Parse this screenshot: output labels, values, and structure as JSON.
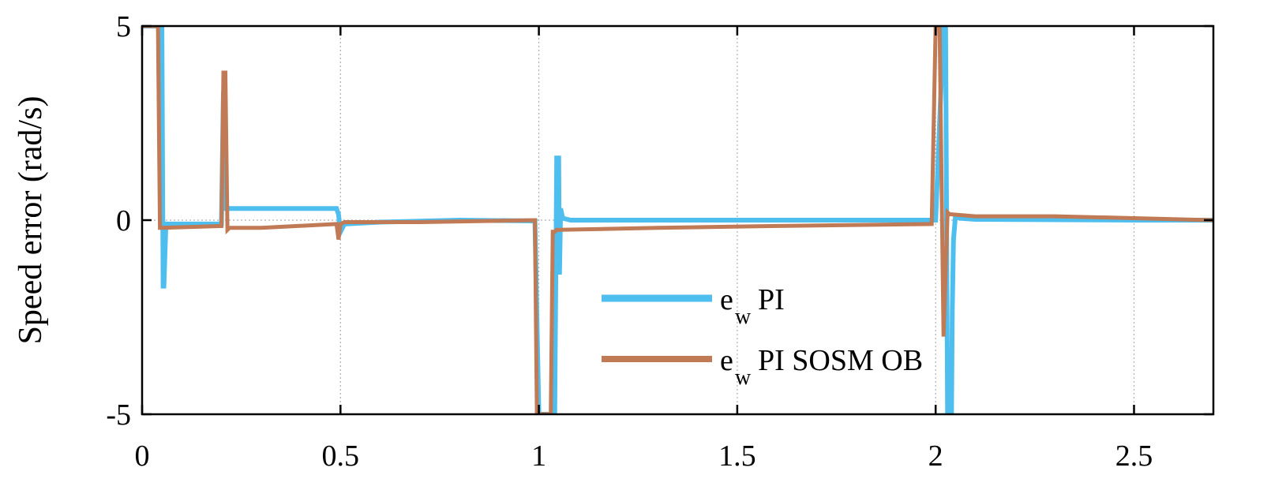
{
  "chart_data": {
    "type": "line",
    "title": "",
    "xlabel": "",
    "ylabel": "Speed error (rad/s)",
    "xlim": [
      0,
      2.7
    ],
    "ylim": [
      -5,
      5
    ],
    "grid": true,
    "legend_position": "bottom-center",
    "x_ticks": [
      {
        "value": 0,
        "label": "0"
      },
      {
        "value": 0.5,
        "label": "0.5"
      },
      {
        "value": 1,
        "label": "1"
      },
      {
        "value": 1.5,
        "label": "1.5"
      },
      {
        "value": 2,
        "label": "2"
      },
      {
        "value": 2.5,
        "label": "2.5"
      }
    ],
    "y_ticks": [
      {
        "value": 5,
        "label": "5"
      },
      {
        "value": 0,
        "label": "0"
      },
      {
        "value": -5,
        "label": "-5"
      }
    ],
    "series": [
      {
        "name": "PI",
        "legend_main": "e",
        "legend_sub": "w",
        "color": "#4dbeee",
        "x": [
          0.0,
          0.04,
          0.045,
          0.05,
          0.053,
          0.055,
          0.06,
          0.2,
          0.205,
          0.21,
          0.25,
          0.3,
          0.49,
          0.495,
          0.5,
          0.51,
          0.6,
          0.8,
          0.99,
          1.0,
          1.04,
          1.045,
          1.05,
          1.052,
          1.055,
          1.06,
          1.08,
          1.3,
          1.6,
          1.9,
          2.0,
          2.02,
          2.025,
          2.03,
          2.04,
          2.042,
          2.045,
          2.05,
          2.06,
          2.1,
          2.5,
          2.7
        ],
        "y": [
          5,
          5,
          5,
          5,
          -1.7,
          -1.7,
          -0.1,
          -0.1,
          3.3,
          0.3,
          0.3,
          0.3,
          0.3,
          0.15,
          -0.3,
          -0.1,
          -0.05,
          0.0,
          -0.02,
          -5,
          -5,
          1.6,
          1.6,
          -1.4,
          0.3,
          0.05,
          0.0,
          0.0,
          0.0,
          0.0,
          0.0,
          5,
          5,
          -5,
          -5,
          -2.3,
          -0.5,
          0.1,
          0.05,
          0.02,
          0.0,
          0.0
        ]
      },
      {
        "name": "PI SOSM OB",
        "legend_main": "e",
        "legend_sub": "w",
        "color": "#c07a55",
        "x": [
          0.0,
          0.035,
          0.04,
          0.045,
          0.05,
          0.2,
          0.205,
          0.21,
          0.215,
          0.22,
          0.3,
          0.49,
          0.495,
          0.5,
          0.51,
          0.7,
          0.99,
          0.995,
          1.0,
          1.01,
          1.03,
          1.035,
          1.04,
          1.045,
          1.05,
          1.3,
          1.6,
          1.99,
          2.0,
          2.005,
          2.01,
          2.02,
          2.03,
          2.035,
          2.04,
          2.1,
          2.3,
          2.5,
          2.7
        ],
        "y": [
          5,
          5,
          5,
          -0.2,
          -0.2,
          -0.15,
          3.8,
          3.8,
          -0.25,
          -0.2,
          -0.2,
          -0.1,
          -0.5,
          -0.1,
          -0.05,
          -0.05,
          0.0,
          -5,
          -5,
          -5,
          -5,
          -0.3,
          -0.3,
          -0.25,
          -0.25,
          -0.2,
          -0.15,
          -0.1,
          5,
          5,
          5,
          -3.0,
          0.2,
          0.15,
          0.15,
          0.1,
          0.1,
          0.05,
          0.0
        ]
      }
    ]
  }
}
